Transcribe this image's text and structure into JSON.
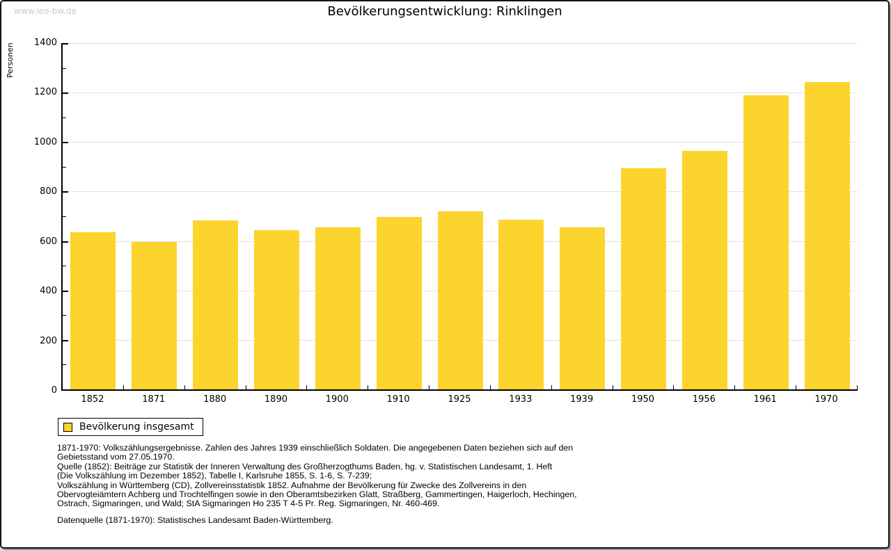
{
  "watermark": "www.leo-bw.de",
  "title": "Bevölkerungsentwicklung: Rinklingen",
  "chart_data": {
    "type": "bar",
    "title": "Bevölkerungsentwicklung: Rinklingen",
    "xlabel": "",
    "ylabel": "Personen",
    "categories": [
      "1852",
      "1871",
      "1880",
      "1890",
      "1900",
      "1910",
      "1925",
      "1933",
      "1939",
      "1950",
      "1956",
      "1961",
      "1970"
    ],
    "values": [
      636,
      595,
      682,
      645,
      654,
      696,
      721,
      685,
      654,
      895,
      964,
      1190,
      1242
    ],
    "ylim": [
      0,
      1400
    ],
    "ytick_step": 200,
    "yminor_step": 100,
    "grid": true,
    "legend_entries": [
      "Bevölkerung insgesamt"
    ],
    "legend_position": "bottom-left",
    "bar_color": "#FCD42D"
  },
  "legend": {
    "label": "Bevölkerung insgesamt"
  },
  "colors": {
    "bar": "#FCD42D",
    "grid": "#E2E2E2",
    "axis": "#000000",
    "watermark": "#C9C9C9"
  },
  "notes": {
    "block1": "1871-1970: Volkszählungsergebnisse. Zahlen des Jahres 1939 einschließlich Soldaten. Die angegebenen Daten beziehen sich auf den\nGebietsstand vom 27.05.1970.\nQuelle (1852): Beiträge zur Statistik der Inneren Verwaltung des Großherzogthums Baden, hg. v. Statistischen Landesamt, 1. Heft\n(Die Volkszählung im Dezember 1852), Tabelle I, Karlsruhe 1855, S. 1-6, S. 7-239;\nVolkszählung in Württemberg (CD), Zollvereinsstatistik 1852. Aufnahme der Bevölkerung für Zwecke des Zollvereins in den\nObervogteiämtern Achberg und Trochtelfingen sowie in den Oberamtsbezirken Glatt, Straßberg, Gammertingen, Haigerloch, Hechingen,\nOstrach, Sigmaringen, und Wald; StA Sigmaringen Ho 235 T 4-5 Pr. Reg. Sigmaringen, Nr. 460-469.",
    "source": "Datenquelle (1871-1970): Statistisches Landesamt Baden-Württemberg."
  }
}
